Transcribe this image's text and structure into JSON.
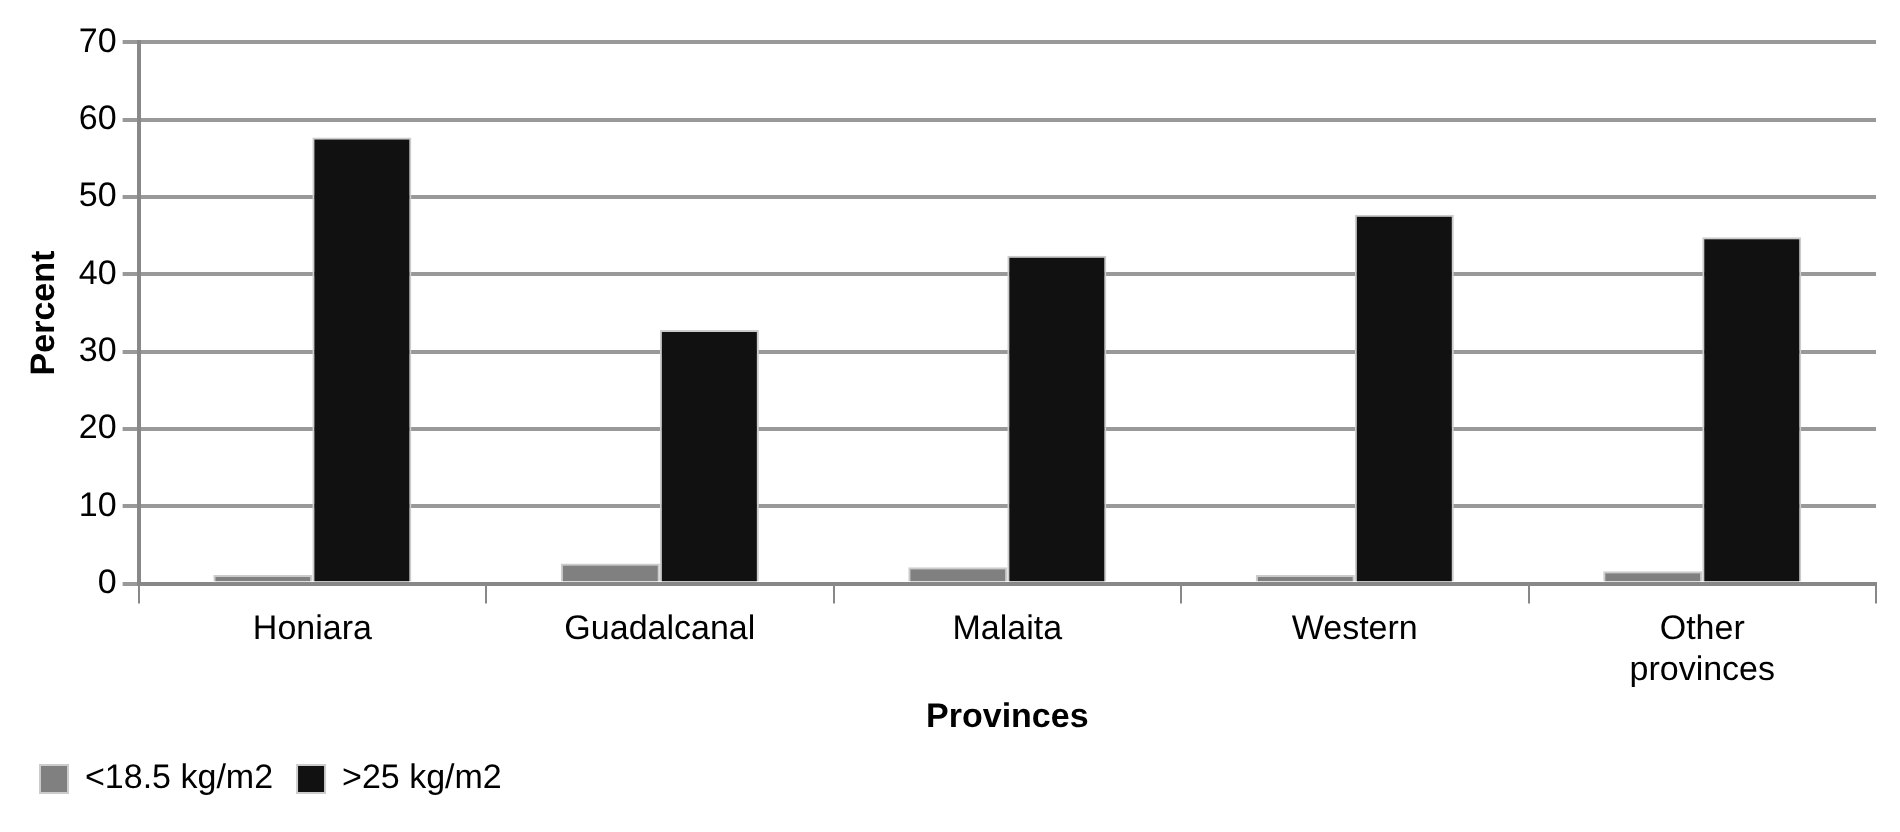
{
  "chart_data": {
    "type": "bar",
    "xlabel": "Provinces",
    "ylabel": "Percent",
    "categories": [
      "Honiara",
      "Guadalcanal",
      "Malaita",
      "Western",
      "Other provinces"
    ],
    "series": [
      {
        "name": "<18.5 kg/m2",
        "color": "#808080",
        "values": [
          1.1,
          2.6,
          2.1,
          1.1,
          1.6
        ]
      },
      {
        "name": ">25 kg/m2",
        "color": "#111111",
        "values": [
          57.7,
          32.8,
          42.4,
          47.7,
          44.8
        ]
      }
    ],
    "ylim": [
      0,
      70
    ],
    "yticks": [
      0,
      10,
      20,
      30,
      40,
      50,
      60,
      70
    ],
    "grid": "y",
    "legend": "bottom left"
  }
}
